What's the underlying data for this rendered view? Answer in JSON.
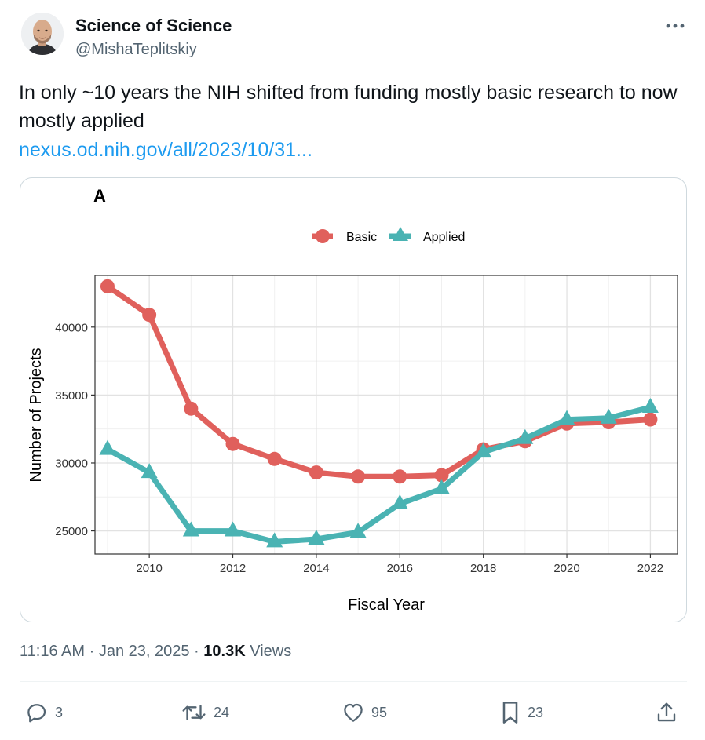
{
  "author": {
    "display_name": "Science of Science",
    "handle": "@MishaTeplitskiy"
  },
  "tweet": {
    "text": "In only ~10 years the NIH shifted from funding mostly basic research to now mostly applied",
    "link_text": "nexus.od.nih.gov/all/2023/10/31..."
  },
  "meta": {
    "time": "11:16 AM",
    "sep1": "·",
    "date": "Jan 23, 2025",
    "sep2": "·",
    "views_count": "10.3K",
    "views_label": "Views"
  },
  "actions": {
    "replies": "3",
    "reposts": "24",
    "likes": "95",
    "bookmarks": "23"
  },
  "icons": {
    "more": "more-horizontal-icon",
    "reply": "reply-bubble-icon",
    "repost": "repost-icon",
    "like": "heart-icon",
    "bookmark": "bookmark-icon",
    "share": "share-icon"
  },
  "colors": {
    "link": "#1d9bf0",
    "basic": "#e0605c",
    "applied": "#4ab3b3"
  },
  "chart_data": {
    "type": "line",
    "panel_label": "A",
    "title": "",
    "xlabel": "Fiscal Year",
    "ylabel": "Number of Projects",
    "xlim": [
      2008.7,
      2022.65
    ],
    "ylim": [
      23300,
      43800
    ],
    "x_ticks": [
      2010,
      2012,
      2014,
      2016,
      2018,
      2020,
      2022
    ],
    "y_ticks": [
      25000,
      30000,
      35000,
      40000
    ],
    "grid": true,
    "legend_position": "top",
    "x": [
      2009,
      2010,
      2011,
      2012,
      2013,
      2014,
      2015,
      2016,
      2017,
      2018,
      2019,
      2020,
      2021,
      2022
    ],
    "series": [
      {
        "name": "Basic",
        "marker": "circle",
        "values": [
          43000,
          40900,
          34000,
          31400,
          30300,
          29300,
          29000,
          29000,
          29100,
          31000,
          31600,
          32900,
          33000,
          33200
        ]
      },
      {
        "name": "Applied",
        "marker": "triangle",
        "values": [
          31000,
          29300,
          25000,
          25000,
          24200,
          24400,
          24900,
          27000,
          28100,
          30800,
          31800,
          33200,
          33300,
          34100
        ]
      }
    ]
  }
}
